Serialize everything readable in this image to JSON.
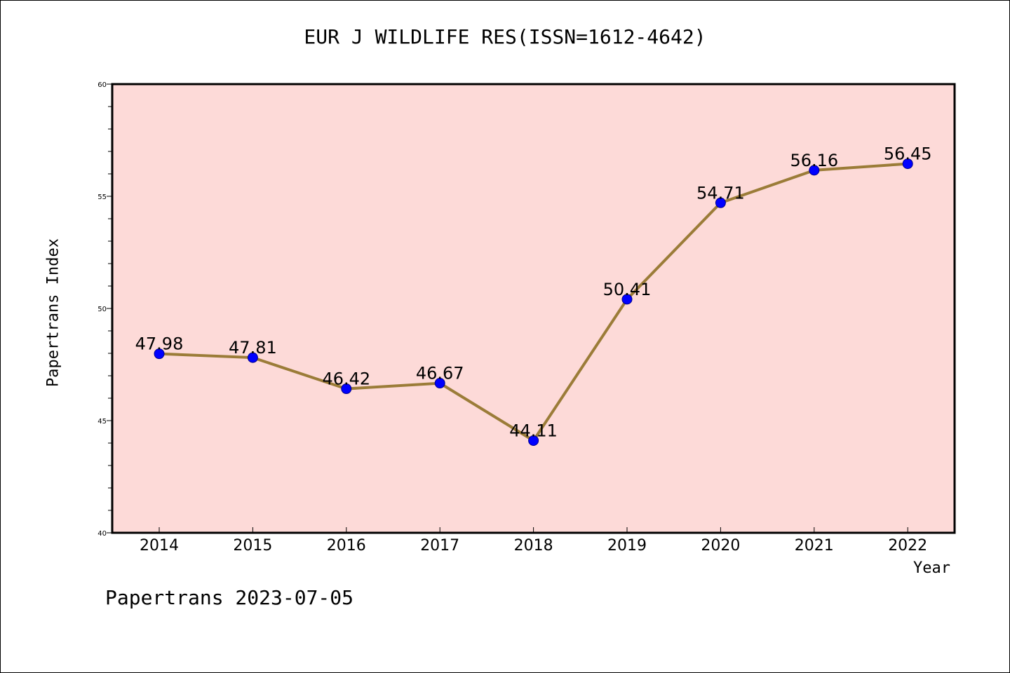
{
  "chart_data": {
    "type": "line",
    "title": "EUR J WILDLIFE RES(ISSN=1612-4642)",
    "xlabel": "Year",
    "ylabel": "Papertrans Index",
    "x": [
      "2014",
      "2015",
      "2016",
      "2017",
      "2018",
      "2019",
      "2020",
      "2021",
      "2022"
    ],
    "values": [
      47.98,
      47.81,
      46.42,
      46.67,
      44.11,
      50.41,
      54.71,
      56.16,
      56.45
    ],
    "data_labels": [
      "47.98",
      "47.81",
      "46.42",
      "46.67",
      "44.11",
      "50.41",
      "54.71",
      "56.16",
      "56.45"
    ],
    "ylim": [
      40,
      60
    ],
    "yticks": [
      "40",
      "45",
      "50",
      "55",
      "60"
    ],
    "grid": false,
    "colors": {
      "plot_background": "#fddad8",
      "line": "#9b7c38",
      "marker": "#0000ff"
    }
  },
  "footer": "Papertrans 2023-07-05"
}
